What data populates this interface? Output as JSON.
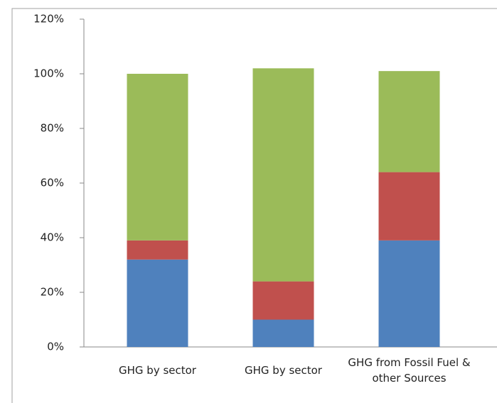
{
  "chart_data": {
    "type": "stacked_bar",
    "categories": [
      "GHG by sector",
      "GHG by sector",
      "GHG from Fossil Fuel & other Sources"
    ],
    "series": [
      {
        "color": "#4f81bd",
        "values": [
          32,
          10,
          39
        ]
      },
      {
        "color": "#c0504d",
        "values": [
          7,
          14,
          25
        ]
      },
      {
        "color": "#9bbb59",
        "values": [
          61,
          78,
          37
        ]
      }
    ],
    "ylim": [
      0,
      120
    ],
    "yticks": [
      {
        "value": 0,
        "label": "0%"
      },
      {
        "value": 20,
        "label": "20%"
      },
      {
        "value": 40,
        "label": "40%"
      },
      {
        "value": 60,
        "label": "60%"
      },
      {
        "value": 80,
        "label": "80%"
      },
      {
        "value": 100,
        "label": "100%"
      },
      {
        "value": 120,
        "label": "120%"
      }
    ]
  }
}
